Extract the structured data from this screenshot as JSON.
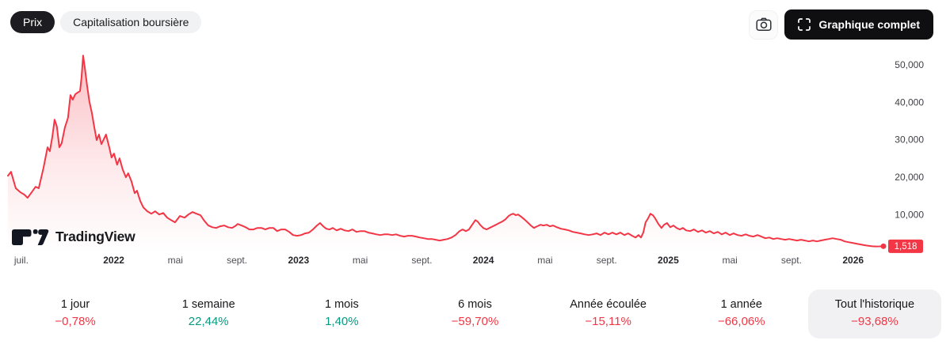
{
  "toolbar": {
    "price_tab": "Prix",
    "marketcap_tab": "Capitalisation boursière",
    "fullscreen_label": "Graphique complet",
    "camera_icon": "camera-icon",
    "fullscreen_icon": "fullscreen-icon"
  },
  "logo": {
    "text": "TradingView"
  },
  "colors": {
    "red": "#F23645",
    "green": "#089981",
    "dark": "#0f0f12"
  },
  "chart_data": {
    "type": "area",
    "title": "Prix",
    "grid": false,
    "line_color": "#F23645",
    "x_unit": "months since juil. 2021",
    "ylim": [
      0,
      52600
    ],
    "y_ticks": [
      {
        "v": 50000,
        "label": "50,000"
      },
      {
        "v": 40000,
        "label": "40,000"
      },
      {
        "v": 30000,
        "label": "30,000"
      },
      {
        "v": 20000,
        "label": "20,000"
      },
      {
        "v": 10000,
        "label": "10,000"
      }
    ],
    "x_ticks": [
      {
        "m": 0,
        "label": "juil.",
        "bold": false
      },
      {
        "m": 6,
        "label": "2022",
        "bold": true
      },
      {
        "m": 10,
        "label": "mai",
        "bold": false
      },
      {
        "m": 14,
        "label": "sept.",
        "bold": false
      },
      {
        "m": 18,
        "label": "2023",
        "bold": true
      },
      {
        "m": 22,
        "label": "mai",
        "bold": false
      },
      {
        "m": 26,
        "label": "sept.",
        "bold": false
      },
      {
        "m": 30,
        "label": "2024",
        "bold": true
      },
      {
        "m": 34,
        "label": "mai",
        "bold": false
      },
      {
        "m": 38,
        "label": "sept.",
        "bold": false
      },
      {
        "m": 42,
        "label": "2025",
        "bold": true
      },
      {
        "m": 46,
        "label": "mai",
        "bold": false
      },
      {
        "m": 50,
        "label": "sept.",
        "bold": false
      },
      {
        "m": 54,
        "label": "2026",
        "bold": true
      }
    ],
    "last_price": {
      "label": "1,518",
      "value": 1518
    },
    "points": [
      [
        -0.87,
        20350
      ],
      [
        -0.67,
        21400
      ],
      [
        -0.36,
        17000
      ],
      [
        -0.05,
        15900
      ],
      [
        0.2,
        15300
      ],
      [
        0.41,
        14450
      ],
      [
        0.67,
        15900
      ],
      [
        0.93,
        17400
      ],
      [
        1.13,
        17000
      ],
      [
        1.44,
        22450
      ],
      [
        1.7,
        27950
      ],
      [
        1.85,
        26900
      ],
      [
        2.01,
        30700
      ],
      [
        2.16,
        35350
      ],
      [
        2.31,
        33450
      ],
      [
        2.47,
        27950
      ],
      [
        2.62,
        29000
      ],
      [
        2.83,
        33250
      ],
      [
        3.03,
        35800
      ],
      [
        3.19,
        41900
      ],
      [
        3.34,
        40650
      ],
      [
        3.5,
        42100
      ],
      [
        3.65,
        42550
      ],
      [
        3.81,
        42950
      ],
      [
        3.91,
        46550
      ],
      [
        4.01,
        52450
      ],
      [
        4.12,
        49300
      ],
      [
        4.27,
        44450
      ],
      [
        4.42,
        40200
      ],
      [
        4.58,
        37050
      ],
      [
        4.73,
        33450
      ],
      [
        4.89,
        29850
      ],
      [
        5.04,
        31350
      ],
      [
        5.2,
        28800
      ],
      [
        5.35,
        30050
      ],
      [
        5.5,
        31350
      ],
      [
        5.71,
        27950
      ],
      [
        5.86,
        25200
      ],
      [
        6.02,
        26250
      ],
      [
        6.22,
        23300
      ],
      [
        6.38,
        25000
      ],
      [
        6.58,
        22050
      ],
      [
        6.79,
        19950
      ],
      [
        6.94,
        21000
      ],
      [
        7.15,
        18850
      ],
      [
        7.36,
        15700
      ],
      [
        7.51,
        16350
      ],
      [
        7.72,
        13600
      ],
      [
        7.92,
        11900
      ],
      [
        8.18,
        10850
      ],
      [
        8.44,
        10200
      ],
      [
        8.69,
        10850
      ],
      [
        8.95,
        10000
      ],
      [
        9.21,
        10400
      ],
      [
        9.47,
        9150
      ],
      [
        9.72,
        8500
      ],
      [
        9.98,
        7900
      ],
      [
        10.29,
        9600
      ],
      [
        10.6,
        9150
      ],
      [
        10.85,
        10000
      ],
      [
        11.11,
        10650
      ],
      [
        11.37,
        10200
      ],
      [
        11.63,
        9800
      ],
      [
        11.88,
        8300
      ],
      [
        12.14,
        7050
      ],
      [
        12.4,
        6600
      ],
      [
        12.65,
        6400
      ],
      [
        12.91,
        6850
      ],
      [
        13.17,
        7050
      ],
      [
        13.43,
        6600
      ],
      [
        13.68,
        6400
      ],
      [
        13.94,
        7050
      ],
      [
        14.04,
        7450
      ],
      [
        14.3,
        7050
      ],
      [
        14.56,
        6600
      ],
      [
        14.81,
        6000
      ],
      [
        15.07,
        6000
      ],
      [
        15.33,
        6400
      ],
      [
        15.59,
        6400
      ],
      [
        15.84,
        6000
      ],
      [
        16.1,
        6400
      ],
      [
        16.36,
        6400
      ],
      [
        16.61,
        5550
      ],
      [
        16.87,
        6000
      ],
      [
        17.13,
        6000
      ],
      [
        17.39,
        5350
      ],
      [
        17.64,
        4500
      ],
      [
        17.9,
        4300
      ],
      [
        18.16,
        4500
      ],
      [
        18.42,
        4950
      ],
      [
        18.67,
        5150
      ],
      [
        18.93,
        6000
      ],
      [
        19.19,
        7050
      ],
      [
        19.39,
        7700
      ],
      [
        19.6,
        6850
      ],
      [
        19.8,
        6200
      ],
      [
        20.01,
        6000
      ],
      [
        20.22,
        6400
      ],
      [
        20.47,
        5750
      ],
      [
        20.73,
        6200
      ],
      [
        20.99,
        5750
      ],
      [
        21.24,
        5550
      ],
      [
        21.5,
        6000
      ],
      [
        21.76,
        5350
      ],
      [
        22.02,
        5550
      ],
      [
        22.27,
        5550
      ],
      [
        22.53,
        5150
      ],
      [
        22.79,
        4950
      ],
      [
        23.05,
        4700
      ],
      [
        23.3,
        4500
      ],
      [
        23.56,
        4700
      ],
      [
        23.82,
        4700
      ],
      [
        24.07,
        4500
      ],
      [
        24.33,
        4700
      ],
      [
        24.59,
        4300
      ],
      [
        24.85,
        4100
      ],
      [
        25.1,
        4300
      ],
      [
        25.36,
        4300
      ],
      [
        25.62,
        4100
      ],
      [
        25.87,
        3850
      ],
      [
        26.13,
        3650
      ],
      [
        26.39,
        3450
      ],
      [
        26.65,
        3450
      ],
      [
        26.9,
        3250
      ],
      [
        27.16,
        3050
      ],
      [
        27.42,
        3250
      ],
      [
        27.67,
        3450
      ],
      [
        27.93,
        3850
      ],
      [
        28.19,
        4500
      ],
      [
        28.45,
        5550
      ],
      [
        28.65,
        6000
      ],
      [
        28.86,
        5550
      ],
      [
        29.06,
        6000
      ],
      [
        29.27,
        7250
      ],
      [
        29.48,
        8500
      ],
      [
        29.63,
        8100
      ],
      [
        29.78,
        7250
      ],
      [
        29.99,
        6400
      ],
      [
        30.2,
        6000
      ],
      [
        30.4,
        6400
      ],
      [
        30.61,
        6850
      ],
      [
        30.81,
        7250
      ],
      [
        31.02,
        7700
      ],
      [
        31.22,
        8100
      ],
      [
        31.43,
        8700
      ],
      [
        31.64,
        9600
      ],
      [
        31.79,
        10000
      ],
      [
        31.94,
        10200
      ],
      [
        32.1,
        9800
      ],
      [
        32.25,
        10000
      ],
      [
        32.46,
        9350
      ],
      [
        32.66,
        8700
      ],
      [
        32.87,
        7900
      ],
      [
        33.08,
        7050
      ],
      [
        33.28,
        6400
      ],
      [
        33.49,
        6850
      ],
      [
        33.7,
        7250
      ],
      [
        33.9,
        7050
      ],
      [
        34.11,
        7250
      ],
      [
        34.31,
        6850
      ],
      [
        34.52,
        7050
      ],
      [
        34.77,
        6600
      ],
      [
        35.03,
        6200
      ],
      [
        35.29,
        6000
      ],
      [
        35.55,
        5750
      ],
      [
        35.8,
        5350
      ],
      [
        36.06,
        5150
      ],
      [
        36.32,
        4950
      ],
      [
        36.57,
        4700
      ],
      [
        36.83,
        4500
      ],
      [
        37.09,
        4700
      ],
      [
        37.35,
        4950
      ],
      [
        37.6,
        4500
      ],
      [
        37.86,
        5150
      ],
      [
        38.12,
        4700
      ],
      [
        38.37,
        5150
      ],
      [
        38.63,
        4700
      ],
      [
        38.89,
        5150
      ],
      [
        39.15,
        4500
      ],
      [
        39.4,
        4950
      ],
      [
        39.66,
        4300
      ],
      [
        39.87,
        3850
      ],
      [
        40.07,
        4500
      ],
      [
        40.23,
        3850
      ],
      [
        40.38,
        5150
      ],
      [
        40.53,
        7900
      ],
      [
        40.69,
        8950
      ],
      [
        40.84,
        10200
      ],
      [
        41,
        9800
      ],
      [
        41.15,
        8950
      ],
      [
        41.36,
        7450
      ],
      [
        41.56,
        6400
      ],
      [
        41.72,
        7250
      ],
      [
        41.92,
        7700
      ],
      [
        42.13,
        6600
      ],
      [
        42.34,
        7050
      ],
      [
        42.54,
        6400
      ],
      [
        42.75,
        6000
      ],
      [
        42.95,
        6400
      ],
      [
        43.16,
        5750
      ],
      [
        43.42,
        5550
      ],
      [
        43.67,
        6000
      ],
      [
        43.93,
        5350
      ],
      [
        44.19,
        5750
      ],
      [
        44.44,
        5150
      ],
      [
        44.7,
        5550
      ],
      [
        44.96,
        4950
      ],
      [
        45.22,
        5350
      ],
      [
        45.47,
        4700
      ],
      [
        45.73,
        5150
      ],
      [
        45.99,
        4500
      ],
      [
        46.24,
        4950
      ],
      [
        46.5,
        4500
      ],
      [
        46.76,
        4300
      ],
      [
        47.02,
        4700
      ],
      [
        47.27,
        4300
      ],
      [
        47.53,
        4100
      ],
      [
        47.79,
        4500
      ],
      [
        48.04,
        4100
      ],
      [
        48.3,
        3650
      ],
      [
        48.56,
        3850
      ],
      [
        48.82,
        3450
      ],
      [
        49.07,
        3650
      ],
      [
        49.33,
        3450
      ],
      [
        49.59,
        3250
      ],
      [
        49.84,
        3450
      ],
      [
        50.1,
        3250
      ],
      [
        50.36,
        3050
      ],
      [
        50.62,
        3250
      ],
      [
        50.87,
        3050
      ],
      [
        51.13,
        2800
      ],
      [
        51.39,
        3050
      ],
      [
        51.65,
        2800
      ],
      [
        51.9,
        3050
      ],
      [
        52.16,
        3250
      ],
      [
        52.42,
        3450
      ],
      [
        52.67,
        3650
      ],
      [
        52.93,
        3450
      ],
      [
        53.19,
        3250
      ],
      [
        53.45,
        2800
      ],
      [
        53.7,
        2600
      ],
      [
        53.96,
        2400
      ],
      [
        54.22,
        2200
      ],
      [
        54.47,
        2000
      ],
      [
        54.73,
        1800
      ],
      [
        54.99,
        1650
      ],
      [
        55.25,
        1500
      ],
      [
        55.5,
        1450
      ],
      [
        55.75,
        1480
      ],
      [
        55.97,
        1518
      ]
    ]
  },
  "stats": {
    "items": [
      {
        "id": "1-jour",
        "label": "1 jour",
        "value": "−0,78%",
        "trend": "down",
        "selected": false
      },
      {
        "id": "1-semaine",
        "label": "1 semaine",
        "value": "22,44%",
        "trend": "up",
        "selected": false
      },
      {
        "id": "1-mois",
        "label": "1 mois",
        "value": "1,40%",
        "trend": "up",
        "selected": false
      },
      {
        "id": "6-mois",
        "label": "6 mois",
        "value": "−59,70%",
        "trend": "down",
        "selected": false
      },
      {
        "id": "annee-ecoulee",
        "label": "Année écoulée",
        "value": "−15,11%",
        "trend": "down",
        "selected": false
      },
      {
        "id": "1-annee",
        "label": "1 année",
        "value": "−66,06%",
        "trend": "down",
        "selected": false
      },
      {
        "id": "tout-l-historique",
        "label": "Tout l'historique",
        "value": "−93,68%",
        "trend": "down",
        "selected": true
      }
    ]
  }
}
